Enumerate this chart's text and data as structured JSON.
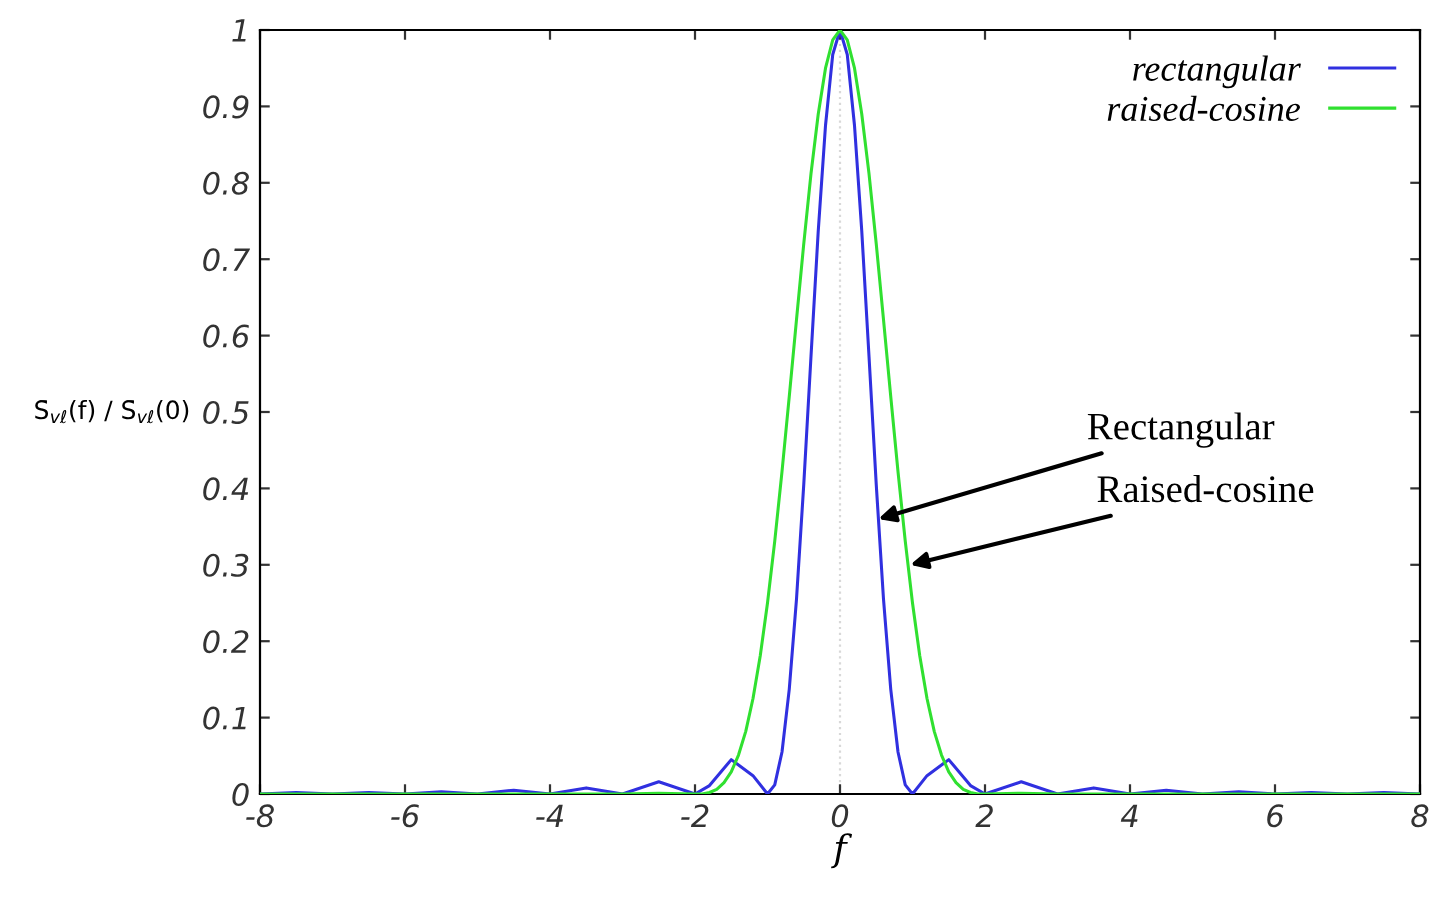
{
  "chart_data": {
    "type": "line",
    "xlabel": "f",
    "ylabel": "S̄$_{vℓ}$(f) / S̄$_{vℓ}$(0)",
    "xlim": [
      -8,
      8
    ],
    "ylim": [
      0,
      1
    ],
    "xticks": [
      -8,
      -6,
      -4,
      -2,
      0,
      2,
      4,
      6,
      8
    ],
    "yticks": [
      0,
      0.1,
      0.2,
      0.3,
      0.4,
      0.5,
      0.6,
      0.7,
      0.8,
      0.9,
      1
    ],
    "grid": false,
    "legend": "top right",
    "line_style": "solid",
    "ref_lines": [
      {
        "axis": "x",
        "value": 0,
        "color": "#d8d8d8",
        "line_style": "dotted"
      }
    ],
    "annotations": [
      {
        "text": "Rectangular",
        "x": 0.53,
        "y": 0.36
      },
      {
        "text": "Raised-cosine",
        "x": 0.97,
        "y": 0.3
      }
    ],
    "series": [
      {
        "name": "rectangular",
        "color": "#3030e0",
        "x": [
          -8,
          -7.5,
          -7,
          -6.5,
          -6,
          -5.5,
          -5,
          -4.5,
          -4,
          -3.5,
          -3,
          -2.5,
          -2,
          -1.8,
          -1.5,
          -1.2,
          -1,
          -0.9,
          -0.8,
          -0.7,
          -0.6,
          -0.5,
          -0.4,
          -0.3,
          -0.2,
          -0.1,
          0,
          0.1,
          0.2,
          0.3,
          0.4,
          0.5,
          0.6,
          0.7,
          0.8,
          0.9,
          1,
          1.2,
          1.5,
          1.8,
          2,
          2.5,
          3,
          3.5,
          4,
          4.5,
          5,
          5.5,
          6,
          6.5,
          7,
          7.5,
          8
        ],
        "values": [
          0,
          0.002,
          0,
          0.002,
          0,
          0.003,
          0,
          0.005,
          0,
          0.008,
          0,
          0.016,
          0,
          0.011,
          0.045,
          0.024,
          0,
          0.012,
          0.055,
          0.137,
          0.255,
          0.405,
          0.573,
          0.737,
          0.875,
          0.968,
          1,
          0.968,
          0.875,
          0.737,
          0.573,
          0.405,
          0.255,
          0.137,
          0.055,
          0.012,
          0,
          0.024,
          0.045,
          0.011,
          0,
          0.016,
          0,
          0.008,
          0,
          0.005,
          0,
          0.003,
          0,
          0.002,
          0,
          0.002,
          0
        ]
      },
      {
        "name": "raised-cosine",
        "color": "#30e030",
        "x": [
          -8,
          -7,
          -6,
          -5,
          -4,
          -3,
          -2.5,
          -2,
          -1.9,
          -1.8,
          -1.7,
          -1.6,
          -1.5,
          -1.4,
          -1.3,
          -1.2,
          -1.1,
          -1,
          -0.9,
          -0.8,
          -0.7,
          -0.6,
          -0.5,
          -0.4,
          -0.3,
          -0.2,
          -0.1,
          0,
          0.1,
          0.2,
          0.3,
          0.4,
          0.5,
          0.6,
          0.7,
          0.8,
          0.9,
          1,
          1.1,
          1.2,
          1.3,
          1.4,
          1.5,
          1.6,
          1.7,
          1.8,
          1.9,
          2,
          2.5,
          3,
          4,
          5,
          6,
          7,
          8
        ],
        "values": [
          0,
          0,
          0,
          0,
          0,
          0,
          0.001,
          0,
          0,
          0.002,
          0.006,
          0.015,
          0.029,
          0.051,
          0.082,
          0.125,
          0.181,
          0.25,
          0.331,
          0.422,
          0.52,
          0.621,
          0.72,
          0.812,
          0.89,
          0.95,
          0.987,
          1,
          0.987,
          0.95,
          0.89,
          0.812,
          0.72,
          0.621,
          0.52,
          0.422,
          0.331,
          0.25,
          0.181,
          0.125,
          0.082,
          0.051,
          0.029,
          0.015,
          0.006,
          0.002,
          0,
          0,
          0.001,
          0,
          0,
          0,
          0,
          0,
          0
        ]
      }
    ]
  }
}
